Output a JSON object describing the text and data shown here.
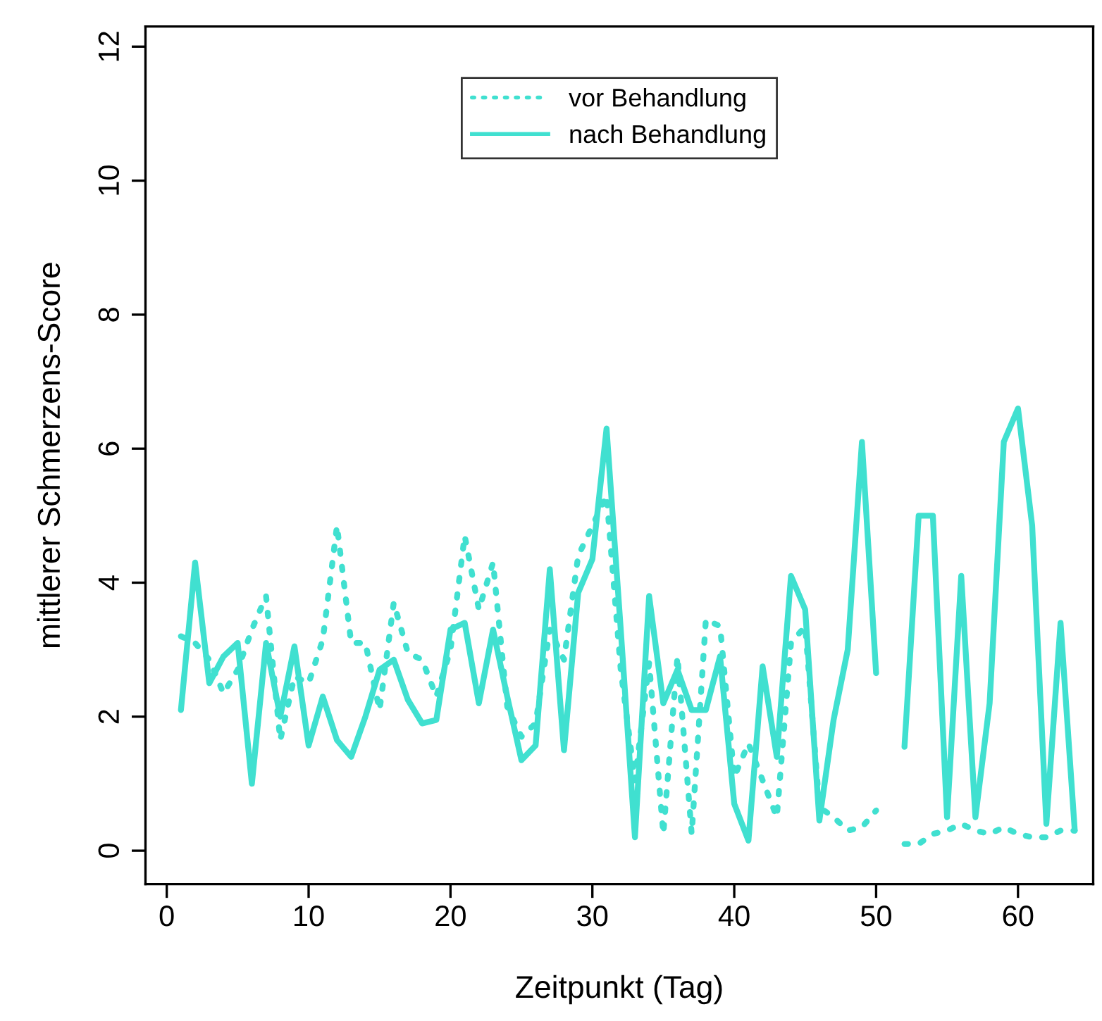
{
  "chart_data": {
    "type": "line",
    "xlabel": "Zeitpunkt (Tag)",
    "ylabel": "mittlerer Schmerzens-Score",
    "x": [
      1,
      2,
      3,
      4,
      5,
      6,
      7,
      8,
      9,
      10,
      11,
      12,
      13,
      14,
      15,
      16,
      17,
      18,
      19,
      20,
      21,
      22,
      23,
      24,
      25,
      26,
      27,
      28,
      29,
      30,
      31,
      32,
      33,
      34,
      35,
      36,
      37,
      38,
      39,
      40,
      41,
      42,
      43,
      44,
      45,
      46,
      47,
      48,
      49,
      50,
      51,
      52,
      53,
      54,
      55,
      56,
      57,
      58,
      59,
      60,
      61,
      62,
      63,
      64
    ],
    "series": [
      {
        "name": "vor Behandlung",
        "color": "#40e0d0",
        "line_style": "dotted",
        "values": [
          3.2,
          3.1,
          2.85,
          2.35,
          2.7,
          3.3,
          3.8,
          1.65,
          2.6,
          2.5,
          3.15,
          4.85,
          3.1,
          3.1,
          2.1,
          3.7,
          2.95,
          2.85,
          2.3,
          3.0,
          4.7,
          3.6,
          4.3,
          2.15,
          1.7,
          1.9,
          3.3,
          2.85,
          4.4,
          4.85,
          5.3,
          2.7,
          1.05,
          2.8,
          0.25,
          2.9,
          0.25,
          3.45,
          3.35,
          1.1,
          1.6,
          1.05,
          0.5,
          3.1,
          3.35,
          0.65,
          0.5,
          0.3,
          0.35,
          0.6,
          null,
          0.1,
          0.1,
          0.25,
          0.3,
          0.4,
          0.3,
          0.25,
          0.35,
          0.25,
          0.2,
          0.2,
          0.3,
          0.3
        ]
      },
      {
        "name": "nach Behandlung",
        "color": "#40e0d0",
        "line_style": "solid",
        "values": [
          2.1,
          4.3,
          2.5,
          2.9,
          3.1,
          1.0,
          3.1,
          2.0,
          3.05,
          1.57,
          2.3,
          1.65,
          1.4,
          2.0,
          2.7,
          2.85,
          2.25,
          1.9,
          1.95,
          3.3,
          3.4,
          2.2,
          3.3,
          2.3,
          1.35,
          1.57,
          4.2,
          1.5,
          3.85,
          4.35,
          6.3,
          3.3,
          0.2,
          3.8,
          2.2,
          2.7,
          2.1,
          2.1,
          2.9,
          0.7,
          0.15,
          2.75,
          1.4,
          4.1,
          3.6,
          0.45,
          1.95,
          3.0,
          6.1,
          2.65,
          null,
          1.55,
          5.0,
          5.0,
          0.5,
          4.1,
          0.5,
          2.2,
          6.1,
          6.6,
          4.85,
          0.4,
          3.4,
          0.3
        ]
      }
    ],
    "xlim": [
      -1.5,
      65.3
    ],
    "xticks": [
      0,
      10,
      20,
      30,
      40,
      50,
      60
    ],
    "ylim": [
      -0.5,
      12.3
    ],
    "yticks": [
      0,
      2,
      4,
      6,
      8,
      10,
      12
    ],
    "grid": false,
    "legend": "top"
  }
}
